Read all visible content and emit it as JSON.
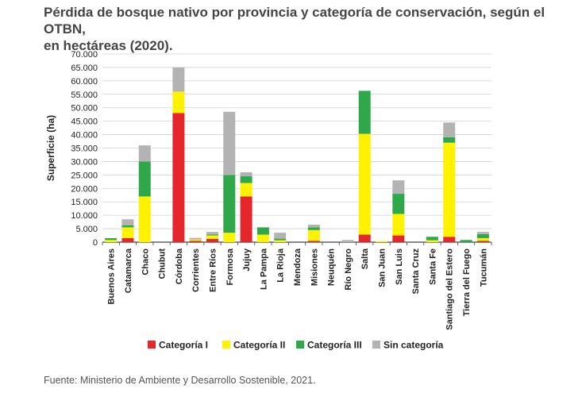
{
  "title_line1": "Pérdida de bosque nativo por provincia y categoría de conservación, según el OTBN,",
  "title_line2": "en hectáreas (2020).",
  "source": "Fuente: Ministerio de Ambiente y Desarrollo Sostenible, 2021.",
  "colors": {
    "cat1": "#e5262a",
    "cat2": "#fff200",
    "cat3": "#2ea84a",
    "sin": "#b3b3b3",
    "grid": "#d0d0d0",
    "axis": "#444444"
  },
  "chart_data": {
    "type": "bar",
    "stacked": true,
    "ylabel": "Superficie (ha)",
    "xlabel": "",
    "ylim": [
      0,
      70000
    ],
    "yticks": [
      "0",
      "5.000",
      "10.000",
      "15.000",
      "20.000",
      "25.000",
      "30.000",
      "35.000",
      "40.000",
      "45.000",
      "50.000",
      "55.000",
      "60.000",
      "65.000",
      "70.000"
    ],
    "grid": true,
    "legend_position": "bottom",
    "categories": [
      "Buenos Aires",
      "Catamarca",
      "Chaco",
      "Chubut",
      "Córdoba",
      "Corrientes",
      "Entre Ríos",
      "Formosa",
      "Jujuy",
      "La Pampa",
      "La Rioja",
      "Mendoza",
      "Misiones",
      "Neuquén",
      "Río Negro",
      "Salta",
      "San Juan",
      "San Luis",
      "Santa Cruz",
      "Santa Fe",
      "Santiago del Estero",
      "Tierra del Fuego",
      "Tucumán"
    ],
    "series": [
      {
        "name": "Categoría I",
        "color_key": "cat1",
        "values": [
          0,
          1500,
          0,
          0,
          48000,
          500,
          1200,
          0,
          17000,
          0,
          0,
          0,
          500,
          0,
          0,
          2800,
          0,
          2500,
          0,
          0,
          2000,
          0,
          500
        ]
      },
      {
        "name": "Categoría II",
        "color_key": "cat2",
        "values": [
          800,
          4000,
          17000,
          0,
          8000,
          500,
          1300,
          3500,
          5000,
          2800,
          700,
          0,
          4000,
          0,
          0,
          37500,
          400,
          8000,
          0,
          700,
          35000,
          0,
          1000
        ]
      },
      {
        "name": "Categoría III",
        "color_key": "cat3",
        "values": [
          700,
          800,
          13000,
          0,
          0,
          0,
          300,
          21500,
          2500,
          2700,
          600,
          0,
          1000,
          0,
          0,
          16000,
          0,
          7500,
          0,
          1300,
          2000,
          800,
          1500
        ]
      },
      {
        "name": "Sin categoría",
        "color_key": "sin",
        "values": [
          0,
          2200,
          6000,
          0,
          9000,
          600,
          1000,
          23500,
          1500,
          0,
          2200,
          0,
          1000,
          0,
          800,
          0,
          0,
          5000,
          0,
          0,
          5500,
          0,
          800
        ]
      }
    ]
  }
}
